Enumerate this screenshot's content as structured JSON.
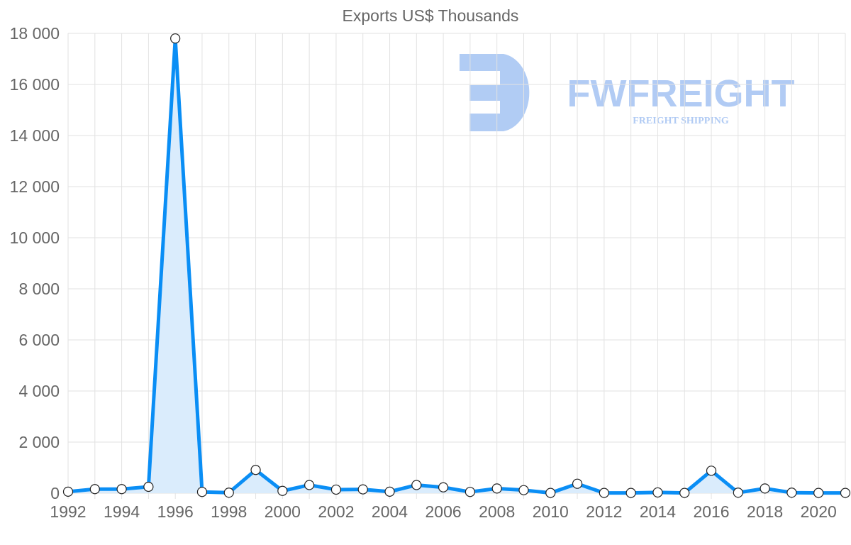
{
  "chart_data": {
    "type": "line",
    "title": "Exports US$ Thousands",
    "xlabel": "",
    "ylabel": "",
    "x": [
      1992,
      1993,
      1994,
      1995,
      1996,
      1997,
      1998,
      1999,
      2000,
      2001,
      2002,
      2003,
      2004,
      2005,
      2006,
      2007,
      2008,
      2009,
      2010,
      2011,
      2012,
      2013,
      2014,
      2015,
      2016,
      2017,
      2018,
      2019,
      2020,
      2021
    ],
    "series": [
      {
        "name": "Exports US$ Thousands",
        "values": [
          60,
          160,
          160,
          250,
          17800,
          50,
          20,
          910,
          90,
          320,
          140,
          150,
          60,
          320,
          230,
          50,
          185,
          120,
          10,
          370,
          10,
          10,
          30,
          10,
          880,
          20,
          185,
          20,
          10,
          10
        ]
      }
    ],
    "xticks": [
      "1992",
      "1994",
      "1996",
      "1998",
      "2000",
      "2002",
      "2004",
      "2006",
      "2008",
      "2010",
      "2012",
      "2014",
      "2016",
      "2018",
      "2020"
    ],
    "yticks": [
      "0",
      "2 000",
      "4 000",
      "6 000",
      "8 000",
      "10 000",
      "12 000",
      "14 000",
      "16 000",
      "18 000"
    ],
    "ylim": [
      0,
      18000
    ],
    "xlim": [
      1992,
      2021
    ],
    "grid": true,
    "fill": true,
    "colors": {
      "line": "#0a8ef5",
      "fill": "#daecfc",
      "grid": "#e2e2e2",
      "text": "#666666",
      "watermark": "#a9c6f3"
    }
  },
  "watermark": {
    "brand": "FWFREIGHT",
    "tagline": "FREIGHT SHIPPING"
  }
}
